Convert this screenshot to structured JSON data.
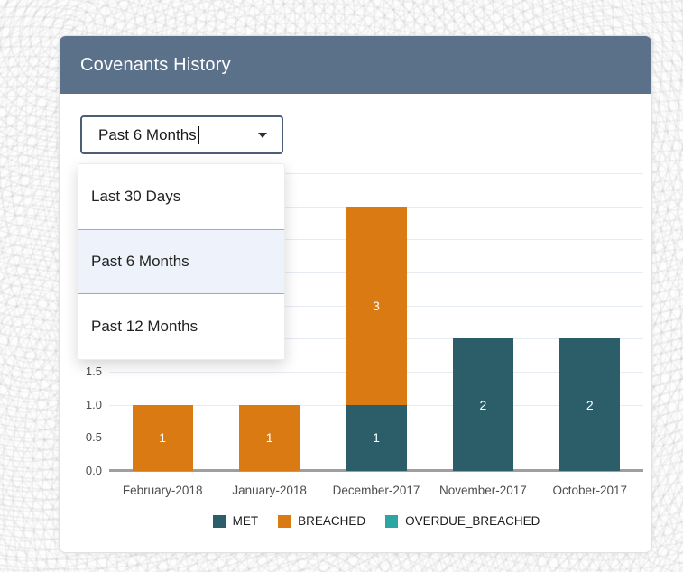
{
  "panel": {
    "title": "Covenants History",
    "header_bg": "#5b7089"
  },
  "filter_dropdown": {
    "value": "Past 6 Months",
    "caret_icon": "chevron-down",
    "options": [
      {
        "label": "Last 30 Days",
        "selected": false
      },
      {
        "label": "Past 6 Months",
        "selected": true
      },
      {
        "label": "Past 12 Months",
        "selected": false
      }
    ]
  },
  "chart_data": {
    "type": "bar",
    "stacked": true,
    "categories": [
      "February-2018",
      "January-2018",
      "December-2017",
      "November-2017",
      "October-2017"
    ],
    "series": [
      {
        "name": "MET",
        "color": "#2b5e68",
        "values": [
          0,
          0,
          1,
          2,
          2
        ]
      },
      {
        "name": "BREACHED",
        "color": "#d97b12",
        "values": [
          1,
          1,
          3,
          0,
          0
        ]
      },
      {
        "name": "OVERDUE_BREACHED",
        "color": "#2ba6a0",
        "values": [
          0,
          0,
          0,
          0,
          0
        ]
      }
    ],
    "ylim": [
      0,
      4.5
    ],
    "ytick_step": 0.5,
    "ytick_format_decimals": 1,
    "grid": true,
    "legend_position": "bottom"
  }
}
